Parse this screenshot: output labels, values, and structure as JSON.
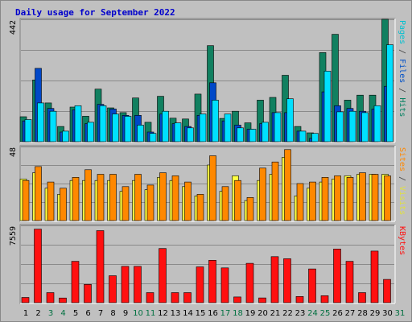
{
  "chart_data": {
    "type": "bar",
    "title": "Daily usage for September 2022",
    "days": [
      "1",
      "2",
      "3",
      "4",
      "5",
      "6",
      "7",
      "8",
      "9",
      "10",
      "11",
      "12",
      "13",
      "14",
      "15",
      "16",
      "17",
      "18",
      "19",
      "20",
      "21",
      "22",
      "23",
      "24",
      "25",
      "26",
      "27",
      "28",
      "29",
      "30",
      "31"
    ],
    "weekend_days": [
      "3",
      "4",
      "10",
      "11",
      "17",
      "18",
      "24",
      "25",
      "31"
    ],
    "colors": {
      "background": "#c0c0c0",
      "frame": "#e8e8e8",
      "title": "#0000cc",
      "grid": "#888888",
      "hits": "#00c0d0",
      "files": "#0050c8",
      "pages": "#00e0ff",
      "visits": "#ffff40",
      "sites": "#ff8800",
      "kbytes": "#ff1010",
      "weekend_label": "#007040"
    },
    "panels": [
      {
        "name": "hits-files-pages",
        "ymax_label": "442",
        "ymax": 442,
        "right_label": [
          {
            "text": "Pages",
            "color": "#00c0d0"
          },
          {
            "text": " / ",
            "color": "#404040"
          },
          {
            "text": "Files",
            "color": "#0050c8"
          },
          {
            "text": " / ",
            "color": "#404040"
          },
          {
            "text": "Hits",
            "color": "#008060"
          }
        ],
        "series": [
          {
            "name": "Hits",
            "color": "#118060",
            "values": [
              90,
              223,
              140,
              55,
              125,
              92,
              190,
              122,
              105,
              158,
              70,
              164,
              85,
              82,
              172,
              347,
              84,
              110,
              68,
              150,
              160,
              240,
              55,
              32,
              322,
              388,
              150,
              168,
              168,
              442
            ]
          },
          {
            "name": "Files",
            "color": "#0048c8",
            "values": [
              75,
              265,
              120,
              35,
              115,
              65,
              135,
              118,
              95,
              95,
              35,
              100,
              65,
              55,
              95,
              213,
              75,
              60,
              45,
              65,
              105,
              105,
              38,
              12,
              180,
              130,
              120,
              110,
              118,
              200
            ]
          },
          {
            "name": "Pages",
            "color": "#00e0ff",
            "values": [
              80,
              140,
              110,
              38,
              130,
              70,
              130,
              100,
              92,
              60,
              30,
              110,
              68,
              50,
              100,
              150,
              100,
              50,
              45,
              70,
              105,
              155,
              38,
              30,
              255,
              108,
              110,
              105,
              130,
              350
            ]
          }
        ]
      },
      {
        "name": "visits-sites",
        "ymax_label": "48",
        "ymax": 48,
        "right_label": [
          {
            "text": "Sites",
            "color": "#ff8800"
          },
          {
            "text": " / ",
            "color": "#404040"
          },
          {
            "text": "Visits",
            "color": "#e0e040"
          }
        ],
        "series": [
          {
            "name": "Visits",
            "color": "#ffff40",
            "values": [
              27,
              31,
              21,
              17,
              26,
              26,
              26,
              26,
              19,
              26,
              20,
              28,
              26,
              22,
              16,
              36,
              19,
              29,
              13,
              26,
              30,
              41,
              16,
              21,
              25,
              27,
              29,
              30,
              30,
              30
            ]
          },
          {
            "name": "Sites",
            "color": "#ff8800",
            "values": [
              26,
              35,
              25,
              21,
              28,
              33,
              30,
              30,
              22,
              30,
              23,
              31,
              29,
              25,
              17,
              42,
              22,
              26,
              15,
              34,
              38,
              46,
              24,
              25,
              28,
              29,
              28,
              31,
              30,
              29
            ]
          }
        ]
      },
      {
        "name": "kbytes",
        "ymax_label": "7559",
        "ymax": 7559,
        "right_label": [
          {
            "text": "KBytes",
            "color": "#ff1010"
          }
        ],
        "series": [
          {
            "name": "KBytes",
            "color": "#ff1010",
            "values": [
              510,
              7200,
              985,
              455,
              4050,
              1785,
              7050,
              2640,
              3550,
              3550,
              985,
              5300,
              985,
              985,
              3500,
              4150,
              3400,
              560,
              3850,
              465,
              4500,
              4300,
              610,
              3300,
              685,
              5250,
              4050,
              985,
              5050,
              2275
            ]
          }
        ]
      }
    ]
  }
}
